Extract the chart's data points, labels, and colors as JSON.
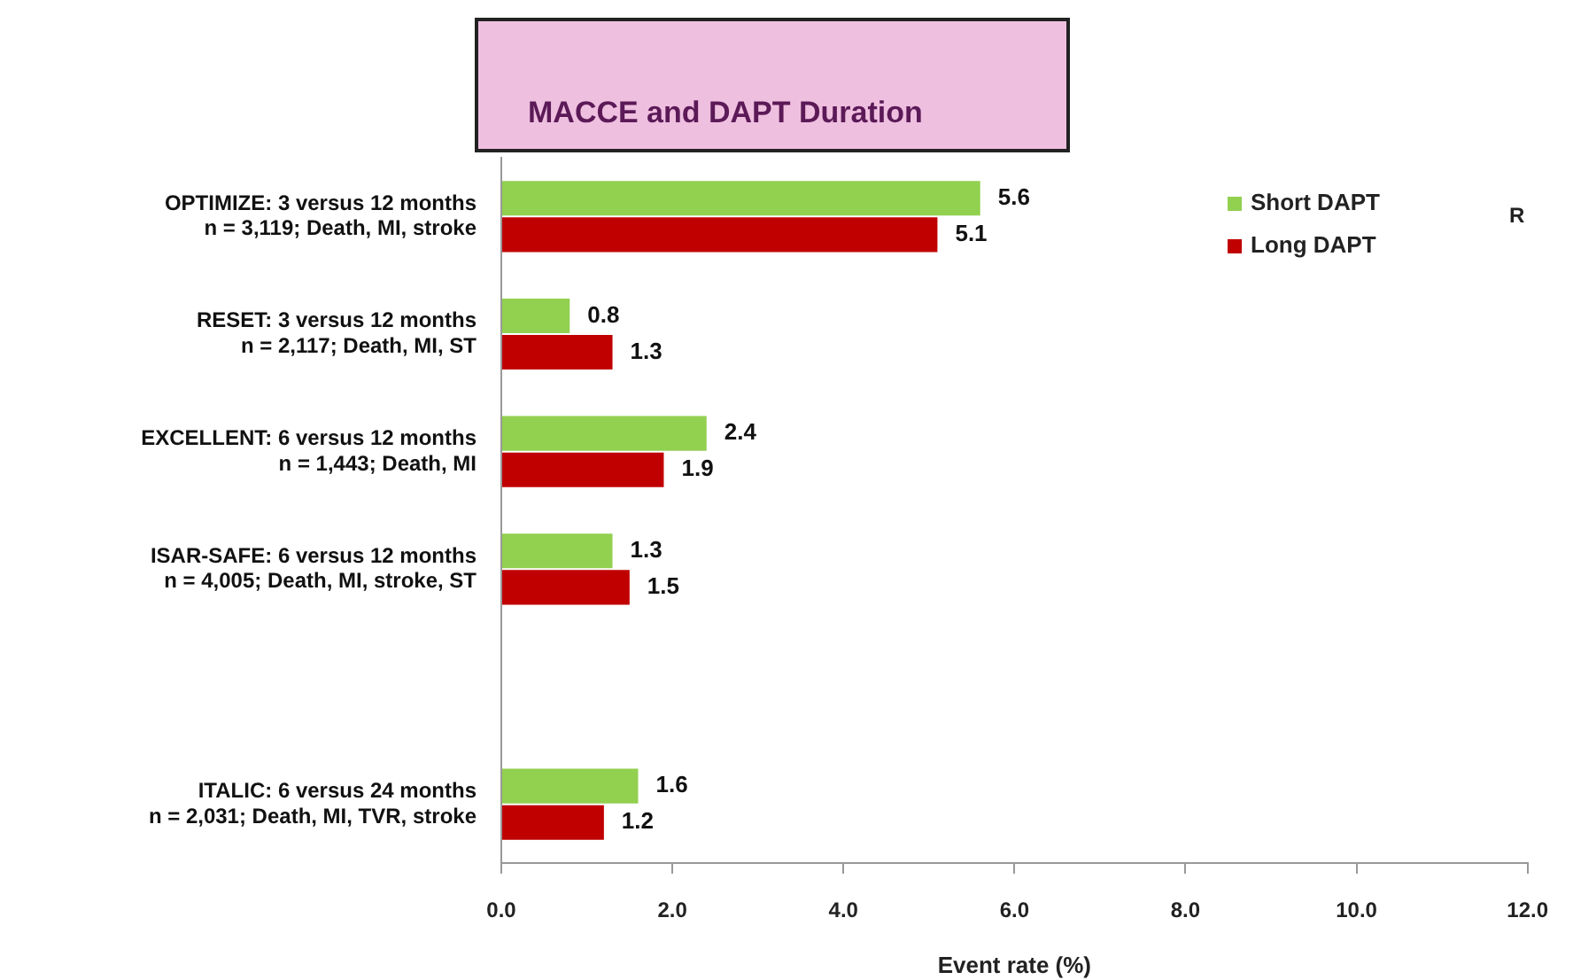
{
  "chart_data": {
    "type": "bar",
    "orientation": "horizontal",
    "title": "MACCE and DAPT Duration",
    "xlabel": "Event rate (%)",
    "categories": [
      "OPTIMIZE: 3 versus 12 months\nn = 3,119; Death, MI, stroke",
      "RESET: 3 versus 12 months\nn = 2,117; Death, MI, ST",
      "EXCELLENT: 6 versus 12 months\nn = 1,443; Death, MI",
      "ISAR-SAFE: 6 versus 12 months\nn = 4,005; Death, MI, stroke, ST",
      null,
      "ITALIC: 6 versus 24 months\nn = 2,031; Death, MI, TVR, stroke"
    ],
    "series": [
      {
        "name": "Short DAPT",
        "color": "#92d050",
        "values": [
          5.6,
          0.8,
          2.4,
          1.3,
          null,
          1.6
        ]
      },
      {
        "name": "Long DAPT",
        "color": "#c00000",
        "values": [
          5.1,
          1.3,
          1.9,
          1.5,
          null,
          1.2
        ]
      }
    ],
    "xlim": [
      0,
      12
    ],
    "xticks": [
      {
        "value": 0,
        "label": "0.0"
      },
      {
        "value": 2,
        "label": "2.0"
      },
      {
        "value": 4,
        "label": "4.0"
      },
      {
        "value": 6,
        "label": "6.0"
      },
      {
        "value": 8,
        "label": "8.0"
      },
      {
        "value": 10,
        "label": "10.0"
      },
      {
        "value": 12,
        "label": "12.0"
      }
    ],
    "data_labels": true,
    "legend": "top right",
    "grid": false,
    "annotations": [
      "R"
    ]
  }
}
